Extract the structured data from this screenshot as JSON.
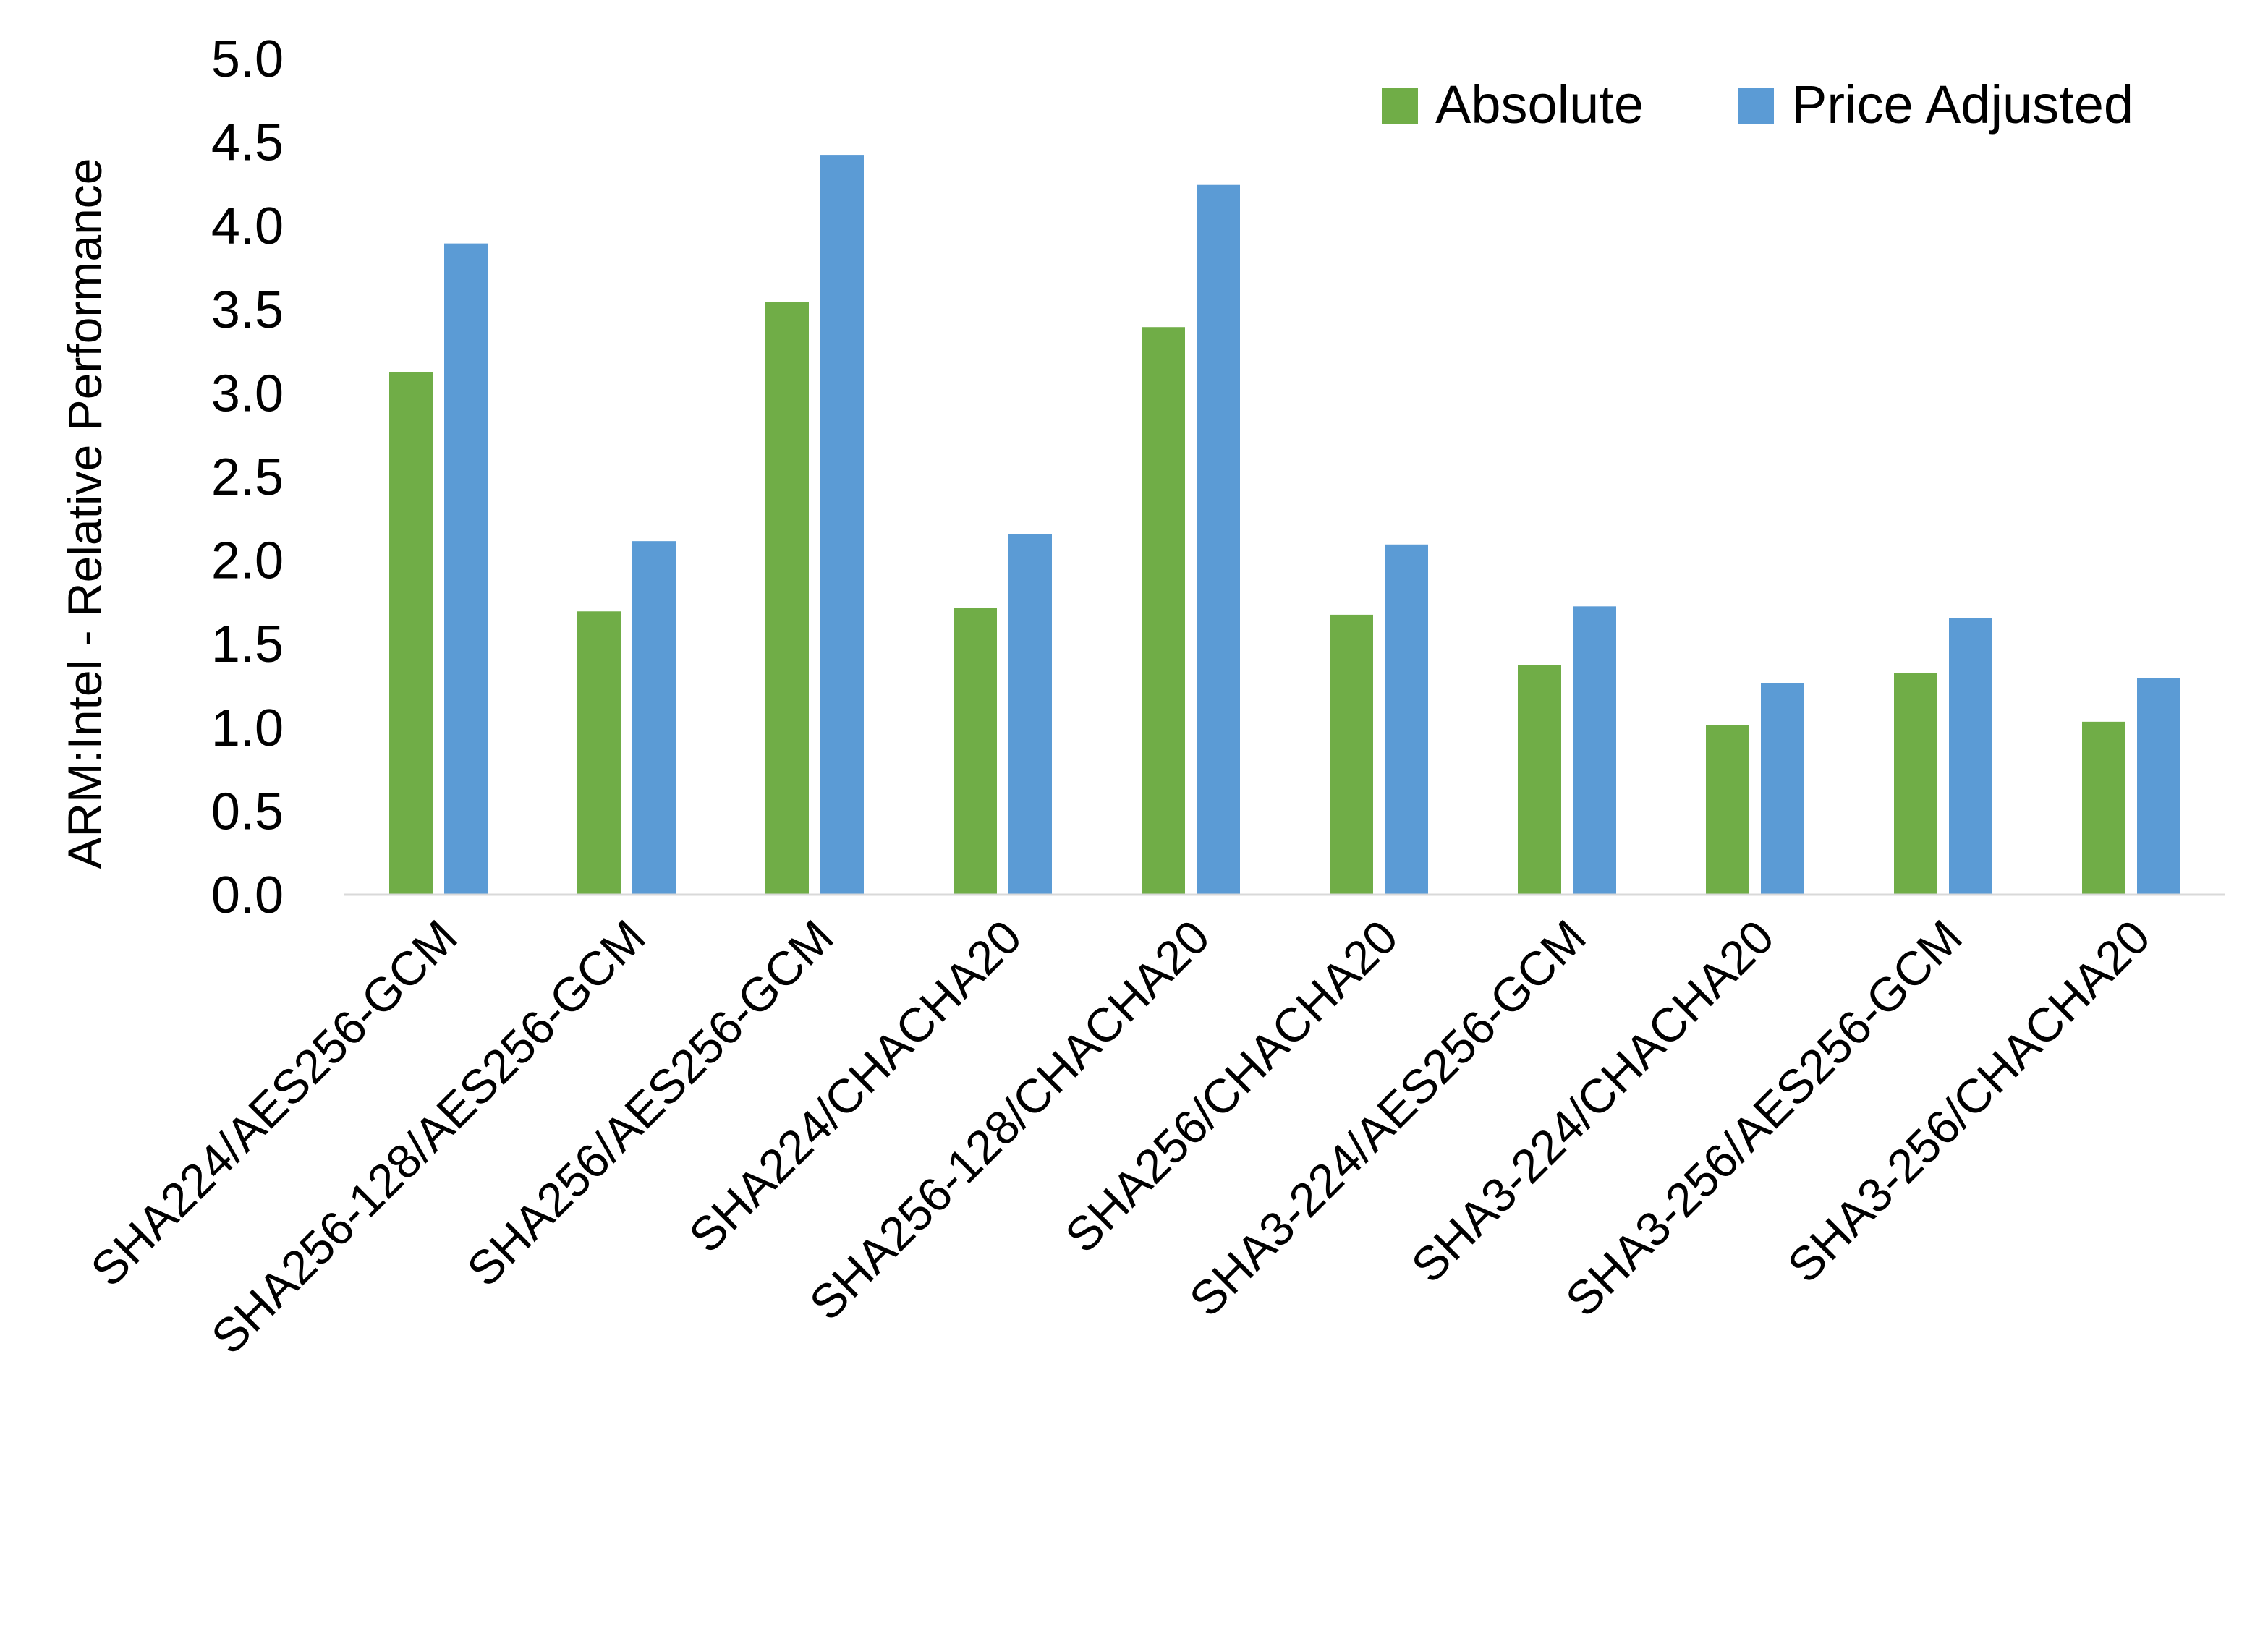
{
  "chart_data": {
    "type": "bar",
    "title": "",
    "xlabel": "",
    "ylabel": "ARM:Intel - Relative Performance",
    "ylim": [
      0,
      5
    ],
    "yticks": [
      "0.0",
      "0.5",
      "1.0",
      "1.5",
      "2.0",
      "2.5",
      "3.0",
      "3.5",
      "4.0",
      "4.5",
      "5.0"
    ],
    "grid": false,
    "legend_position": "top-right",
    "categories": [
      "SHA224/AES256-GCM",
      "SHA256-128/AES256-GCM",
      "SHA256/AES256-GCM",
      "SHA224/CHACHA20",
      "SHA256-128/CHACHA20",
      "SHA256/CHACHA20",
      "SHA3-224/AES256-GCM",
      "SHA3-224/CHACHA20",
      "SHA3-256/AES256-GCM",
      "SHA3-256/CHACHA20"
    ],
    "series": [
      {
        "name": "Absolute",
        "color": "#70AD47",
        "values": [
          3.12,
          1.69,
          3.54,
          1.71,
          3.39,
          1.67,
          1.37,
          1.01,
          1.32,
          1.03
        ]
      },
      {
        "name": "Price Adjusted",
        "color": "#5B9BD5",
        "values": [
          3.89,
          2.11,
          4.42,
          2.15,
          4.24,
          2.09,
          1.72,
          1.26,
          1.65,
          1.29
        ]
      }
    ]
  }
}
